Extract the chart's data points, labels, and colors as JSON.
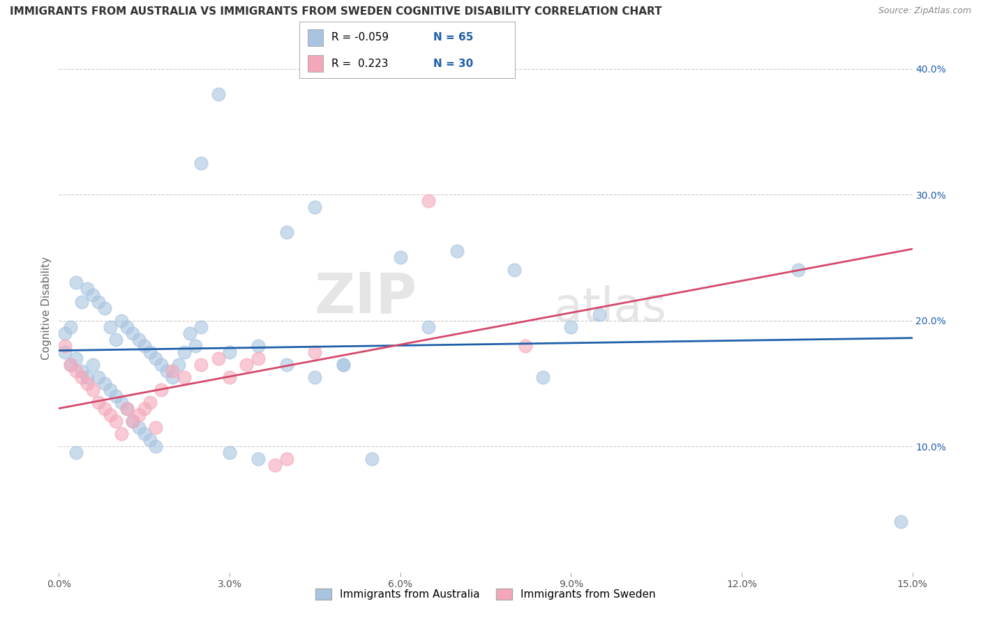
{
  "title": "IMMIGRANTS FROM AUSTRALIA VS IMMIGRANTS FROM SWEDEN COGNITIVE DISABILITY CORRELATION CHART",
  "source": "Source: ZipAtlas.com",
  "ylabel": "Cognitive Disability",
  "xlim": [
    0.0,
    0.15
  ],
  "ylim": [
    0.0,
    0.42
  ],
  "xticks": [
    0.0,
    0.03,
    0.06,
    0.09,
    0.12,
    0.15
  ],
  "xticklabels": [
    "0.0%",
    "3.0%",
    "6.0%",
    "9.0%",
    "12.0%",
    "15.0%"
  ],
  "yticks": [
    0.0,
    0.1,
    0.2,
    0.3,
    0.4
  ],
  "yticklabels_right": [
    "",
    "10.0%",
    "20.0%",
    "30.0%",
    "40.0%"
  ],
  "australia_color": "#a8c4e0",
  "sweden_color": "#f4a7b9",
  "australia_line_color": "#1f5faa",
  "sweden_line_color": "#d4496b",
  "legend_label_australia": "Immigrants from Australia",
  "legend_label_sweden": "Immigrants from Sweden",
  "r_australia": "-0.059",
  "n_australia": "65",
  "r_sweden": "0.223",
  "n_sweden": "30",
  "australia_x": [
    0.001,
    0.002,
    0.003,
    0.004,
    0.005,
    0.006,
    0.007,
    0.008,
    0.009,
    0.01,
    0.011,
    0.012,
    0.013,
    0.014,
    0.015,
    0.016,
    0.017,
    0.018,
    0.019,
    0.02,
    0.021,
    0.022,
    0.023,
    0.024,
    0.025,
    0.001,
    0.002,
    0.003,
    0.004,
    0.005,
    0.006,
    0.007,
    0.008,
    0.009,
    0.01,
    0.011,
    0.012,
    0.013,
    0.014,
    0.015,
    0.016,
    0.017,
    0.03,
    0.035,
    0.04,
    0.045,
    0.05,
    0.055,
    0.03,
    0.035,
    0.05,
    0.06,
    0.065,
    0.07,
    0.08,
    0.09,
    0.04,
    0.045,
    0.025,
    0.028,
    0.085,
    0.095,
    0.13,
    0.148,
    0.003
  ],
  "australia_y": [
    0.19,
    0.195,
    0.23,
    0.215,
    0.225,
    0.22,
    0.215,
    0.21,
    0.195,
    0.185,
    0.2,
    0.195,
    0.19,
    0.185,
    0.18,
    0.175,
    0.17,
    0.165,
    0.16,
    0.155,
    0.165,
    0.175,
    0.19,
    0.18,
    0.195,
    0.175,
    0.165,
    0.17,
    0.16,
    0.155,
    0.165,
    0.155,
    0.15,
    0.145,
    0.14,
    0.135,
    0.13,
    0.12,
    0.115,
    0.11,
    0.105,
    0.1,
    0.175,
    0.18,
    0.165,
    0.155,
    0.165,
    0.09,
    0.095,
    0.09,
    0.165,
    0.25,
    0.195,
    0.255,
    0.24,
    0.195,
    0.27,
    0.29,
    0.325,
    0.38,
    0.155,
    0.205,
    0.24,
    0.04,
    0.095
  ],
  "sweden_x": [
    0.001,
    0.002,
    0.003,
    0.004,
    0.005,
    0.006,
    0.007,
    0.008,
    0.009,
    0.01,
    0.011,
    0.012,
    0.013,
    0.014,
    0.015,
    0.016,
    0.017,
    0.018,
    0.02,
    0.022,
    0.025,
    0.028,
    0.03,
    0.033,
    0.035,
    0.038,
    0.04,
    0.045,
    0.082,
    0.065
  ],
  "sweden_y": [
    0.18,
    0.165,
    0.16,
    0.155,
    0.15,
    0.145,
    0.135,
    0.13,
    0.125,
    0.12,
    0.11,
    0.13,
    0.12,
    0.125,
    0.13,
    0.135,
    0.115,
    0.145,
    0.16,
    0.155,
    0.165,
    0.17,
    0.155,
    0.165,
    0.17,
    0.085,
    0.09,
    0.175,
    0.18,
    0.295
  ],
  "watermark_zip": "ZIP",
  "watermark_atlas": "atlas",
  "grid_color": "#cccccc",
  "background_color": "#ffffff",
  "title_fontsize": 11,
  "axis_label_fontsize": 11,
  "tick_fontsize": 10,
  "legend_fontsize": 11
}
